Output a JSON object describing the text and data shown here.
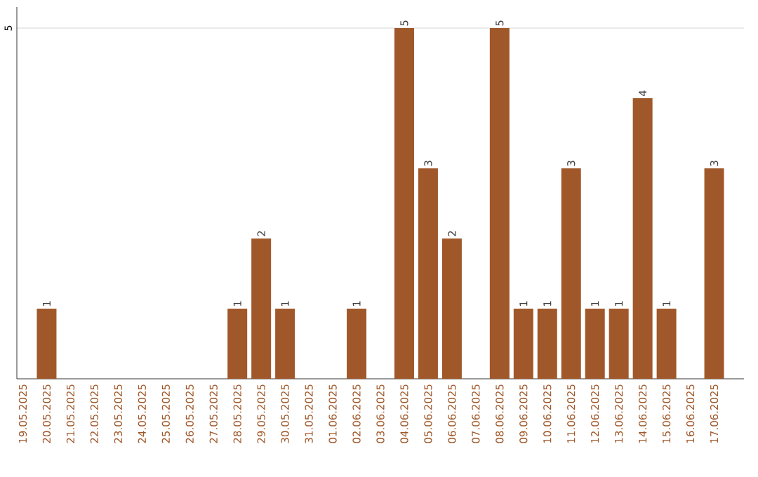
{
  "chart_data": {
    "type": "bar",
    "categories": [
      "19.05.2025",
      "20.05.2025",
      "21.05.2025",
      "22.05.2025",
      "23.05.2025",
      "24.05.2025",
      "25.05.2025",
      "26.05.2025",
      "27.05.2025",
      "28.05.2025",
      "29.05.2025",
      "30.05.2025",
      "31.05.2025",
      "01.06.2025",
      "02.06.2025",
      "03.06.2025",
      "04.06.2025",
      "05.06.2025",
      "06.06.2025",
      "07.06.2025",
      "08.06.2025",
      "09.06.2025",
      "10.06.2025",
      "11.06.2025",
      "12.06.2025",
      "13.06.2025",
      "14.06.2025",
      "15.06.2025",
      "16.06.2025",
      "17.06.2025"
    ],
    "values": [
      0,
      1,
      0,
      0,
      0,
      0,
      0,
      0,
      0,
      1,
      2,
      1,
      0,
      0,
      1,
      0,
      5,
      3,
      2,
      0,
      5,
      1,
      1,
      3,
      1,
      1,
      4,
      1,
      0,
      3
    ],
    "value_labels": [
      null,
      "1",
      null,
      null,
      null,
      null,
      null,
      null,
      null,
      "1",
      "2",
      "1",
      null,
      null,
      "1",
      null,
      "5",
      "3",
      "2",
      null,
      "5",
      "1",
      "1",
      "3",
      "1",
      "1",
      "4",
      "1",
      null,
      "3"
    ],
    "color": "#a0582a",
    "ylim": [
      0,
      5.3
    ],
    "yticks": [
      5
    ],
    "grid": "y"
  }
}
